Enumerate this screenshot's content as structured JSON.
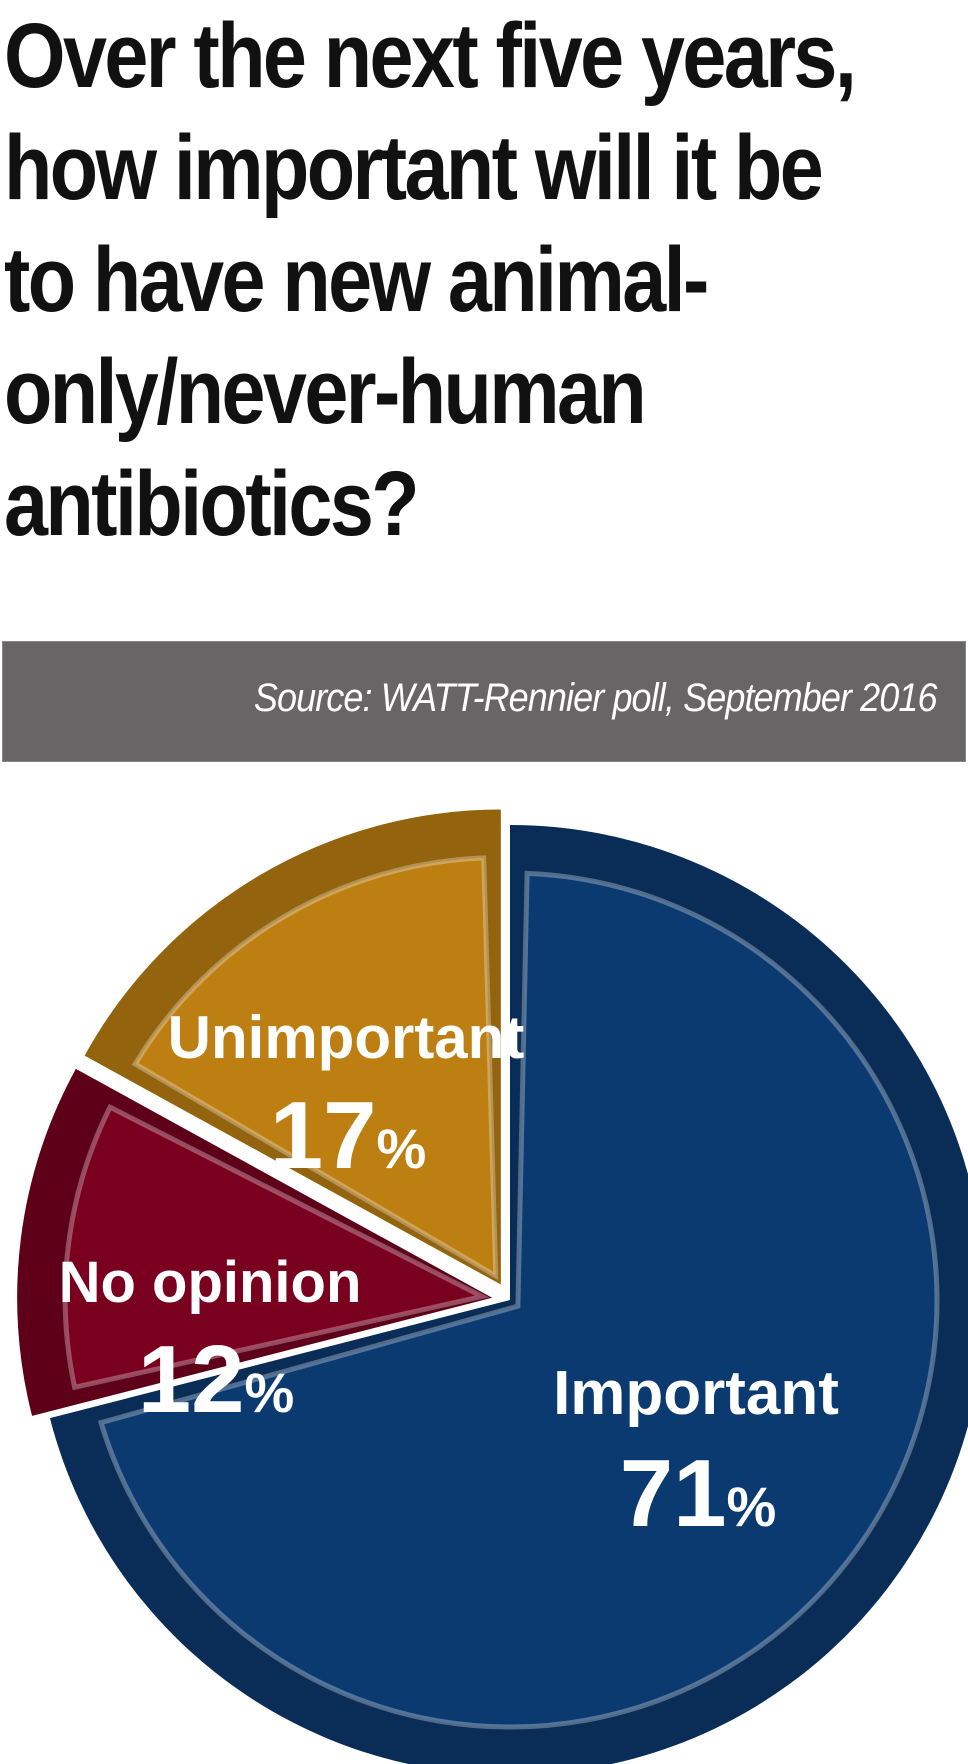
{
  "title_lines": [
    "Over the next five years,",
    "how important will it be",
    "to have new animal-",
    "only/never-human",
    "antibiotics?"
  ],
  "source": "Source: WATT-Rennier poll, September 2016",
  "chart_data": {
    "type": "pie",
    "title": "Over the next five years, how important will it be to have new animal-only/never-human antibiotics?",
    "slices": [
      {
        "label": "Important",
        "value": 71,
        "display": "71",
        "color": "#0b3a70"
      },
      {
        "label": "No opinion",
        "value": 12,
        "display": "12",
        "color": "#7a0020"
      },
      {
        "label": "Unimportant",
        "value": 17,
        "display": "17",
        "color": "#bd7f12"
      }
    ],
    "unit": "%"
  }
}
